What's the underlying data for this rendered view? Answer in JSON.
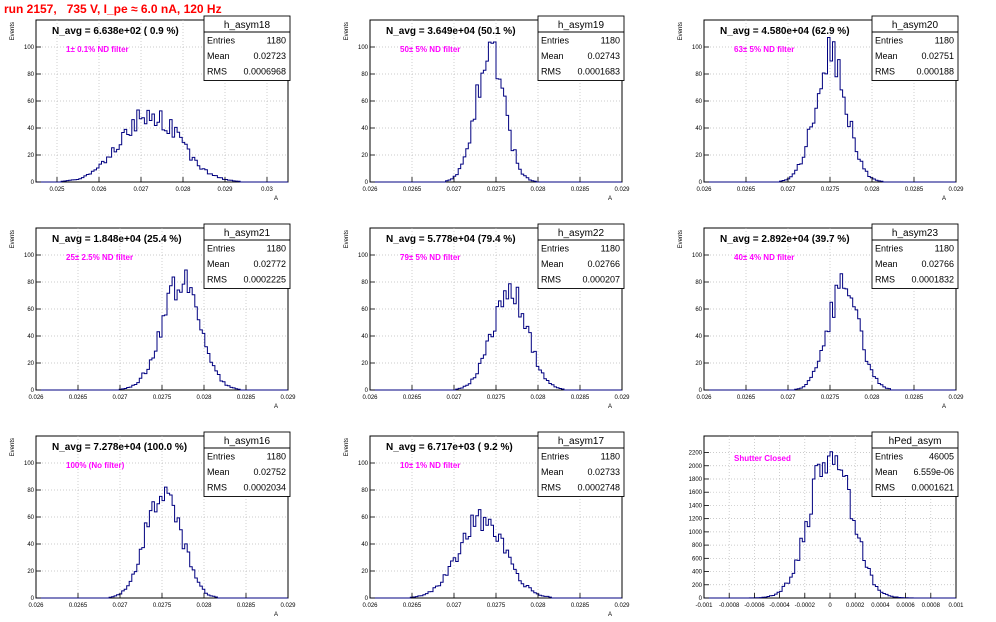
{
  "page": {
    "title": "run 2157,   735 V, I_pe ≈ 6.0 nA, 120 Hz"
  },
  "colors": {
    "line": "#000080",
    "title": "#ff0000",
    "filter_text": "#ff00ff",
    "axis": "#000000",
    "grid": "#bbbbbb"
  },
  "chart_data": [
    {
      "type": "bar",
      "name": "h_asym18",
      "navg": "N_avg = 6.638e+02 ( 0.9 %)",
      "filter": "1± 0.1% ND filter",
      "stats": [
        [
          "Entries",
          "1180"
        ],
        [
          "Mean",
          "0.02723"
        ],
        [
          "RMS",
          "0.0006968"
        ]
      ],
      "ylabel": "Events",
      "xlabel": "A",
      "xlim": [
        0.0245,
        0.0305
      ],
      "ylim": [
        0,
        120
      ],
      "xticks": [
        0.025,
        0.026,
        0.027,
        0.028,
        0.029,
        0.03
      ],
      "xticklabels": [
        "0.025",
        "0.026",
        "0.027",
        "0.028",
        "0.029",
        "0.03"
      ],
      "yticks": [
        0,
        20,
        40,
        60,
        80,
        100
      ],
      "mean": 0.02723,
      "sigma": 0.000697,
      "peak": 50,
      "seed": 1
    },
    {
      "type": "bar",
      "name": "h_asym19",
      "navg": "N_avg = 3.649e+04 (50.1 %)",
      "filter": "50± 5% ND filter",
      "stats": [
        [
          "Entries",
          "1180"
        ],
        [
          "Mean",
          "0.02743"
        ],
        [
          "RMS",
          "0.0001683"
        ]
      ],
      "ylabel": "Events",
      "xlabel": "A",
      "xlim": [
        0.026,
        0.029
      ],
      "ylim": [
        0,
        120
      ],
      "xticks": [
        0.026,
        0.0265,
        0.027,
        0.0275,
        0.028,
        0.0285,
        0.029
      ],
      "xticklabels": [
        "0.026",
        "0.0265",
        "0.027",
        "0.0275",
        "0.028",
        "0.0285",
        "0.029"
      ],
      "yticks": [
        0,
        20,
        40,
        60,
        80,
        100
      ],
      "mean": 0.02743,
      "sigma": 0.000168,
      "peak": 96,
      "seed": 2
    },
    {
      "type": "bar",
      "name": "h_asym20",
      "navg": "N_avg = 4.580e+04 (62.9 %)",
      "filter": "63± 5% ND filter",
      "stats": [
        [
          "Entries",
          "1180"
        ],
        [
          "Mean",
          "0.02751"
        ],
        [
          "RMS",
          "0.000188"
        ]
      ],
      "ylabel": "Events",
      "xlabel": "A",
      "xlim": [
        0.026,
        0.029
      ],
      "ylim": [
        0,
        120
      ],
      "xticks": [
        0.026,
        0.0265,
        0.027,
        0.0275,
        0.028,
        0.0285,
        0.029
      ],
      "xticklabels": [
        "0.026",
        "0.0265",
        "0.027",
        "0.0275",
        "0.028",
        "0.0285",
        "0.029"
      ],
      "yticks": [
        0,
        20,
        40,
        60,
        80,
        100
      ],
      "mean": 0.02751,
      "sigma": 0.000188,
      "peak": 93,
      "seed": 3
    },
    {
      "type": "bar",
      "name": "h_asym21",
      "navg": "N_avg = 1.848e+04 (25.4 %)",
      "filter": "25± 2.5% ND filter",
      "stats": [
        [
          "Entries",
          "1180"
        ],
        [
          "Mean",
          "0.02772"
        ],
        [
          "RMS",
          "0.0002225"
        ]
      ],
      "ylabel": "Events",
      "xlabel": "A",
      "xlim": [
        0.026,
        0.029
      ],
      "ylim": [
        0,
        120
      ],
      "xticks": [
        0.026,
        0.0265,
        0.027,
        0.0275,
        0.028,
        0.0285,
        0.029
      ],
      "xticklabels": [
        "0.026",
        "0.0265",
        "0.027",
        "0.0275",
        "0.028",
        "0.0285",
        "0.029"
      ],
      "yticks": [
        0,
        20,
        40,
        60,
        80,
        100
      ],
      "mean": 0.02772,
      "sigma": 0.000223,
      "peak": 82,
      "seed": 4
    },
    {
      "type": "bar",
      "name": "h_asym22",
      "navg": "N_avg = 5.778e+04 (79.4 %)",
      "filter": "79± 5% ND filter",
      "stats": [
        [
          "Entries",
          "1180"
        ],
        [
          "Mean",
          "0.02766"
        ],
        [
          "RMS",
          "0.000207"
        ]
      ],
      "ylabel": "Events",
      "xlabel": "A",
      "xlim": [
        0.026,
        0.029
      ],
      "ylim": [
        0,
        120
      ],
      "xticks": [
        0.026,
        0.0265,
        0.027,
        0.0275,
        0.028,
        0.0285,
        0.029
      ],
      "xticklabels": [
        "0.026",
        "0.0265",
        "0.027",
        "0.0275",
        "0.028",
        "0.0285",
        "0.029"
      ],
      "yticks": [
        0,
        20,
        40,
        60,
        80,
        100
      ],
      "mean": 0.02766,
      "sigma": 0.000207,
      "peak": 73,
      "seed": 5
    },
    {
      "type": "bar",
      "name": "h_asym23",
      "navg": "N_avg = 2.892e+04 (39.7 %)",
      "filter": "40± 4% ND filter",
      "stats": [
        [
          "Entries",
          "1180"
        ],
        [
          "Mean",
          "0.02766"
        ],
        [
          "RMS",
          "0.0001832"
        ]
      ],
      "ylabel": "Events",
      "xlabel": "A",
      "xlim": [
        0.026,
        0.029
      ],
      "ylim": [
        0,
        120
      ],
      "xticks": [
        0.026,
        0.0265,
        0.027,
        0.0275,
        0.028,
        0.0285,
        0.029
      ],
      "xticklabels": [
        "0.026",
        "0.0265",
        "0.027",
        "0.0275",
        "0.028",
        "0.0285",
        "0.029"
      ],
      "yticks": [
        0,
        20,
        40,
        60,
        80,
        100
      ],
      "mean": 0.02766,
      "sigma": 0.000183,
      "peak": 78,
      "seed": 6
    },
    {
      "type": "bar",
      "name": "h_asym16",
      "navg": "N_avg = 7.278e+04 (100.0 %)",
      "filter": "100% (No filter)",
      "stats": [
        [
          "Entries",
          "1180"
        ],
        [
          "Mean",
          "0.02752"
        ],
        [
          "RMS",
          "0.0002034"
        ]
      ],
      "ylabel": "Events",
      "xlabel": "A",
      "xlim": [
        0.026,
        0.029
      ],
      "ylim": [
        0,
        120
      ],
      "xticks": [
        0.026,
        0.0265,
        0.027,
        0.0275,
        0.028,
        0.0285,
        0.029
      ],
      "xticklabels": [
        "0.026",
        "0.0265",
        "0.027",
        "0.0275",
        "0.028",
        "0.0285",
        "0.029"
      ],
      "yticks": [
        0,
        20,
        40,
        60,
        80,
        100
      ],
      "mean": 0.02752,
      "sigma": 0.000203,
      "peak": 85,
      "seed": 7
    },
    {
      "type": "bar",
      "name": "h_asym17",
      "navg": "N_avg = 6.717e+03 ( 9.2 %)",
      "filter": "10± 1% ND filter",
      "stats": [
        [
          "Entries",
          "1180"
        ],
        [
          "Mean",
          "0.02733"
        ],
        [
          "RMS",
          "0.0002748"
        ]
      ],
      "ylabel": "Events",
      "xlabel": "A",
      "xlim": [
        0.026,
        0.029
      ],
      "ylim": [
        0,
        120
      ],
      "xticks": [
        0.026,
        0.0265,
        0.027,
        0.0275,
        0.028,
        0.0285,
        0.029
      ],
      "xticklabels": [
        "0.026",
        "0.0265",
        "0.027",
        "0.0275",
        "0.028",
        "0.0285",
        "0.029"
      ],
      "yticks": [
        0,
        20,
        40,
        60,
        80,
        100
      ],
      "mean": 0.02733,
      "sigma": 0.000275,
      "peak": 58,
      "seed": 8
    },
    {
      "type": "bar",
      "name": "hPed_asym",
      "navg": "",
      "filter": "Shutter Closed",
      "stats": [
        [
          "Entries",
          "46005"
        ],
        [
          "Mean",
          "6.559e-06"
        ],
        [
          "RMS",
          "0.0001621"
        ]
      ],
      "ylabel": "",
      "xlabel": "",
      "xlim": [
        -0.001,
        0.001
      ],
      "ylim": [
        0,
        2450
      ],
      "xticks": [
        -0.001,
        -0.0008,
        -0.0006,
        -0.0004,
        -0.0002,
        0,
        0.0002,
        0.0004,
        0.0006,
        0.0008,
        0.001
      ],
      "xticklabels": [
        "-0.001",
        "-0.0008",
        "-0.0006",
        "-0.0004",
        "-0.0002",
        "0",
        "0.0002",
        "0.0004",
        "0.0006",
        "0.0008",
        "0.001"
      ],
      "yticks": [
        0,
        200,
        400,
        600,
        800,
        1000,
        1200,
        1400,
        1600,
        1800,
        2000,
        2200
      ],
      "mean": 6.6e-06,
      "sigma": 0.000162,
      "peak": 2290,
      "seed": 9
    }
  ]
}
